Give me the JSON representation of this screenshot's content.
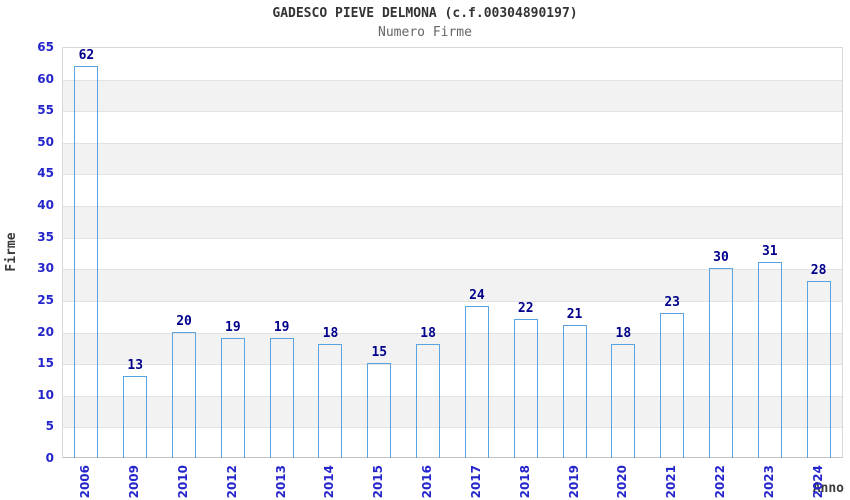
{
  "chart_data": {
    "type": "bar",
    "title": "GADESCO PIEVE DELMONA (c.f.00304890197)",
    "subtitle": "Numero Firme",
    "xlabel": "Anno",
    "ylabel": "Firme",
    "categories": [
      "2006",
      "2009",
      "2010",
      "2012",
      "2013",
      "2014",
      "2015",
      "2016",
      "2017",
      "2018",
      "2019",
      "2020",
      "2021",
      "2022",
      "2023",
      "2024"
    ],
    "values": [
      62,
      13,
      20,
      19,
      19,
      18,
      15,
      18,
      24,
      22,
      21,
      18,
      23,
      30,
      31,
      28
    ],
    "ylim": [
      0,
      65
    ],
    "ytick_step": 5,
    "grid": "alternating horizontal bands",
    "legend": "none",
    "colors": {
      "bar_edge": "#141466",
      "bar_highlight": "#9ba3dc",
      "bar_outline": "#5ba2e0",
      "tick_label": "#2525cc",
      "value_label": "#00008b",
      "band_gray": "#f2f2f2",
      "band_white": "#ffffff",
      "plot_border": "#d9d9d9",
      "title_color": "#333333",
      "subtitle_color": "#666666"
    }
  }
}
